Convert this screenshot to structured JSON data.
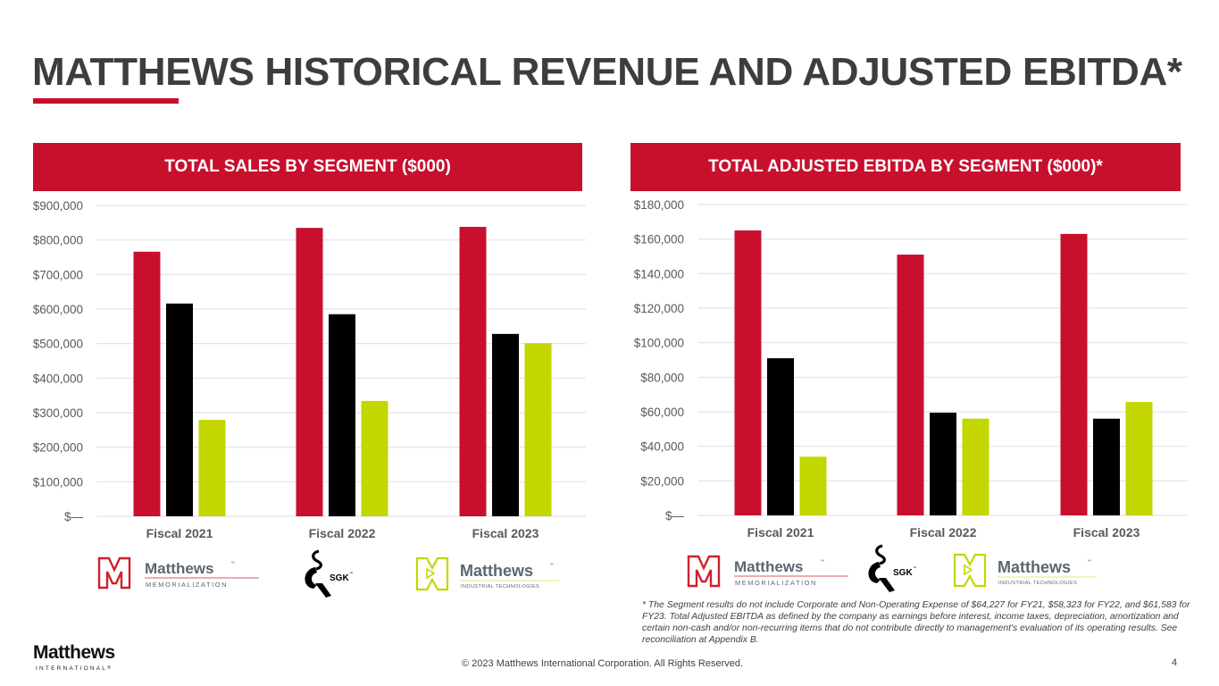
{
  "page": {
    "title": "MATTHEWS HISTORICAL REVENUE AND ADJUSTED EBITDA*",
    "accent_color": "#c8102e",
    "footnote": "* The Segment results do not include Corporate and Non-Operating Expense of $64,227 for FY21, $58,323 for FY22, and $61,583 for FY23. Total Adjusted EBITDA as defined by the company as earnings before interest, income taxes, depreciation, amortization and certain non-cash and/or non-recurring items that do not contribute directly to management's evaluation of  its operating results. See reconciliation at Appendix B.",
    "copyright": "© 2023 Matthews International Corporation. All Rights Reserved.",
    "page_number": "4",
    "corporate_logo": {
      "name": "Matthews",
      "sub": "INTERNATIONAL",
      "mark": "®"
    }
  },
  "segment_logos": {
    "memorialization": {
      "name": "Matthews",
      "sub": "MEMORIALIZATION",
      "tm": "™",
      "color": "#d0202e"
    },
    "sgk": {
      "name": "SGK",
      "tm": "™"
    },
    "industrial": {
      "name": "Matthews",
      "sub": "INDUSTRIAL TECHNOLOGIES",
      "tm": "™",
      "color": "#c4d600"
    }
  },
  "chart_data": [
    {
      "type": "bar",
      "title": "TOTAL SALES BY SEGMENT ($000)",
      "xlabel": "",
      "ylabel": "",
      "categories": [
        "Fiscal 2021",
        "Fiscal 2022",
        "Fiscal 2023"
      ],
      "series": [
        {
          "name": "Memorialization",
          "color": "#c8102e",
          "values": [
            766000,
            835000,
            838000
          ]
        },
        {
          "name": "SGK",
          "color": "#000000",
          "values": [
            616000,
            585000,
            528000
          ]
        },
        {
          "name": "Industrial Technologies",
          "color": "#c4d600",
          "values": [
            279000,
            334000,
            501000
          ]
        }
      ],
      "ylim": [
        0,
        900000
      ],
      "yticks": [
        0,
        100000,
        200000,
        300000,
        400000,
        500000,
        600000,
        700000,
        800000,
        900000
      ],
      "ytick_labels": [
        "$—",
        "$100,000",
        "$200,000",
        "$300,000",
        "$400,000",
        "$500,000",
        "$600,000",
        "$700,000",
        "$800,000",
        "$900,000"
      ],
      "grid": true,
      "legend": "logos below chart"
    },
    {
      "type": "bar",
      "title": "TOTAL ADJUSTED EBITDA BY SEGMENT ($000)*",
      "xlabel": "",
      "ylabel": "",
      "categories": [
        "Fiscal 2021",
        "Fiscal 2022",
        "Fiscal 2023"
      ],
      "series": [
        {
          "name": "Memorialization",
          "color": "#c8102e",
          "values": [
            165000,
            151000,
            163000
          ]
        },
        {
          "name": "SGK",
          "color": "#000000",
          "values": [
            91000,
            59500,
            56000
          ]
        },
        {
          "name": "Industrial Technologies",
          "color": "#c4d600",
          "values": [
            34000,
            56000,
            65700
          ]
        }
      ],
      "ylim": [
        0,
        180000
      ],
      "yticks": [
        0,
        20000,
        40000,
        60000,
        80000,
        100000,
        120000,
        140000,
        160000,
        180000
      ],
      "ytick_labels": [
        "$—",
        "$20,000",
        "$40,000",
        "$60,000",
        "$80,000",
        "$100,000",
        "$120,000",
        "$140,000",
        "$160,000",
        "$180,000"
      ],
      "grid": true,
      "legend": "logos below chart"
    }
  ]
}
